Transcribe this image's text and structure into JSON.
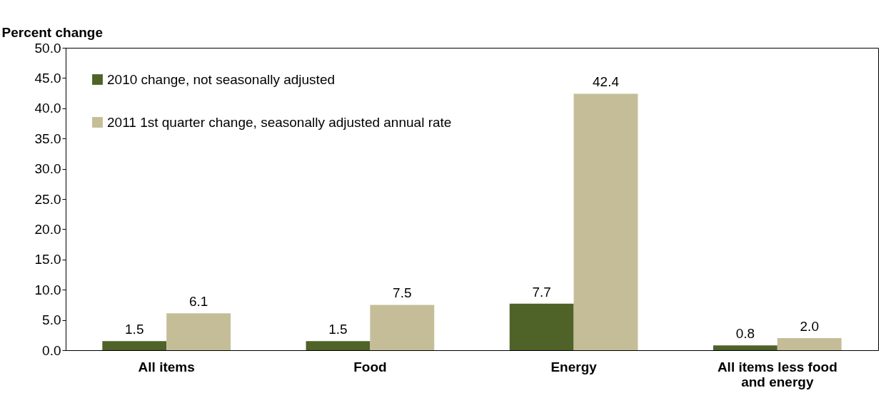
{
  "chart_data": {
    "type": "bar",
    "ylabel": "Percent change",
    "categories": [
      "All items",
      "Food",
      "Energy",
      "All items less food and energy"
    ],
    "series": [
      {
        "name": "2010 change, not seasonally adjusted",
        "color": "#4f6228",
        "values": [
          1.5,
          1.5,
          7.7,
          0.8
        ],
        "value_labels": [
          "1.5",
          "1.5",
          "7.7",
          "0.8"
        ]
      },
      {
        "name": "2011 1st quarter change, seasonally adjusted annual rate",
        "color": "#c4bd97",
        "values": [
          6.1,
          7.5,
          42.4,
          2.0
        ],
        "value_labels": [
          "6.1",
          "7.5",
          "42.4",
          "2.0"
        ]
      }
    ],
    "ylim": [
      0,
      50
    ],
    "yticks": [
      {
        "value": 0,
        "label": "0.0"
      },
      {
        "value": 5,
        "label": "5.0"
      },
      {
        "value": 10,
        "label": "10.0"
      },
      {
        "value": 15,
        "label": "15.0"
      },
      {
        "value": 20,
        "label": "20.0"
      },
      {
        "value": 25,
        "label": "25.0"
      },
      {
        "value": 30,
        "label": "30.0"
      },
      {
        "value": 35,
        "label": "35.0"
      },
      {
        "value": 40,
        "label": "40.0"
      },
      {
        "value": 45,
        "label": "45.0"
      },
      {
        "value": 50,
        "label": "50.0"
      }
    ],
    "grid": false,
    "legend": "top left"
  }
}
